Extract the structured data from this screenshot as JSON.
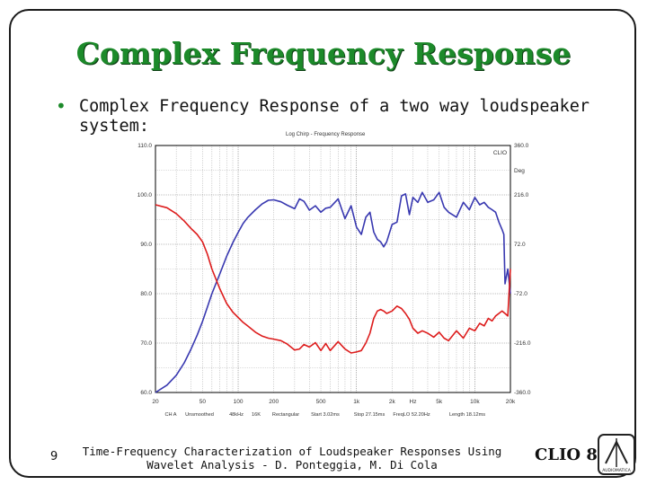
{
  "slide": {
    "title": "Complex Frequency Response",
    "bullet": "Complex Frequency Response of a two way loudspeaker system:",
    "footer": "Time-Frequency Characterization of Loudspeaker Responses Using Wavelet Analysis - D. Ponteggia, M. Di Cola",
    "page_number": "9",
    "logo_text": "CLIO 8",
    "logo_badge": "AUDIOMATICA"
  },
  "chart_data": {
    "type": "line",
    "title": "Log Chirp - Frequency Response",
    "brand": "CLIO",
    "x_scale": "log",
    "xlim": [
      20,
      20000
    ],
    "x_ticks": [
      {
        "value": 20,
        "label": "20"
      },
      {
        "value": 50,
        "label": "50"
      },
      {
        "value": 100,
        "label": "100"
      },
      {
        "value": 200,
        "label": "200"
      },
      {
        "value": 500,
        "label": "500"
      },
      {
        "value": 1000,
        "label": "1k"
      },
      {
        "value": 2000,
        "label": "2k"
      },
      {
        "value": 3000,
        "label": "Hz"
      },
      {
        "value": 5000,
        "label": "5k"
      },
      {
        "value": 10000,
        "label": "10k"
      },
      {
        "value": 20000,
        "label": "20k"
      }
    ],
    "left_axis": {
      "ylim": [
        60.0,
        110.0
      ],
      "ticks": [
        {
          "value": 110,
          "label": "110.0"
        },
        {
          "value": 100,
          "label": "100.0"
        },
        {
          "value": 90,
          "label": "90.0"
        },
        {
          "value": 80,
          "label": "80.0"
        },
        {
          "value": 70,
          "label": "70.0"
        },
        {
          "value": 60,
          "label": "60.0"
        }
      ]
    },
    "right_axis": {
      "unit": "Deg",
      "ylim": [
        -360.0,
        360.0
      ],
      "ticks": [
        {
          "value": 360,
          "label": "360.0"
        },
        {
          "value": 216,
          "label": "216.0"
        },
        {
          "value": 72,
          "label": "72.0"
        },
        {
          "value": -72,
          "label": "-72.0"
        },
        {
          "value": -216,
          "label": "-216.0"
        },
        {
          "value": -360,
          "label": "-360.0"
        }
      ]
    },
    "status_bar": [
      "CH A",
      "Unsmoothed",
      "48kHz",
      "16K",
      "Rectangular",
      "Start 3.02ms",
      "Stop 27.15ms",
      "FreqLO 52.20Hz",
      "Length 18.12ms"
    ],
    "series": [
      {
        "color": "#3838b0",
        "axis": "left",
        "x": [
          20,
          25,
          30,
          35,
          40,
          45,
          50,
          55,
          60,
          70,
          80,
          90,
          100,
          110,
          120,
          140,
          160,
          180,
          200,
          230,
          260,
          300,
          330,
          360,
          400,
          450,
          500,
          550,
          600,
          700,
          800,
          900,
          1000,
          1100,
          1200,
          1300,
          1400,
          1500,
          1600,
          1700,
          1800,
          2000,
          2200,
          2400,
          2600,
          2800,
          3000,
          3300,
          3600,
          4000,
          4500,
          5000,
          5500,
          6000,
          7000,
          8000,
          9000,
          10000,
          11000,
          12000,
          13000,
          14000,
          15000,
          16000,
          17000,
          17600,
          18000,
          19000,
          20000
        ],
        "values": [
          60.0,
          61.5,
          63.5,
          66.0,
          68.8,
          71.6,
          74.4,
          77.3,
          80.0,
          84.0,
          87.6,
          90.3,
          92.4,
          94.2,
          95.4,
          97.0,
          98.2,
          98.9,
          99.0,
          98.6,
          97.9,
          97.2,
          99.2,
          98.7,
          96.9,
          97.8,
          96.5,
          97.3,
          97.5,
          99.2,
          95.2,
          97.8,
          93.5,
          92.0,
          95.5,
          96.5,
          92.5,
          91.0,
          90.5,
          89.5,
          90.5,
          94.0,
          94.5,
          99.8,
          100.2,
          96.0,
          99.5,
          98.5,
          100.5,
          98.5,
          99.0,
          100.5,
          97.5,
          96.5,
          95.5,
          98.5,
          97.0,
          99.5,
          98.0,
          98.5,
          97.5,
          97.0,
          96.5,
          94.5,
          93.0,
          92.0,
          82.0,
          85.0,
          80.0
        ]
      },
      {
        "color": "#dd1c1c",
        "axis": "left",
        "x": [
          20,
          25,
          30,
          35,
          40,
          45,
          50,
          55,
          60,
          70,
          80,
          90,
          100,
          110,
          120,
          140,
          160,
          180,
          200,
          230,
          260,
          300,
          330,
          360,
          400,
          450,
          500,
          550,
          600,
          700,
          800,
          900,
          1000,
          1100,
          1200,
          1300,
          1400,
          1500,
          1600,
          1700,
          1800,
          2000,
          2200,
          2400,
          2600,
          2800,
          3000,
          3300,
          3600,
          4000,
          4500,
          5000,
          5500,
          6000,
          7000,
          8000,
          9000,
          10000,
          11000,
          12000,
          13000,
          14000,
          15000,
          16000,
          17000,
          18000,
          19000,
          20000
        ],
        "values": [
          98.0,
          97.4,
          96.2,
          94.7,
          93.2,
          92.0,
          90.5,
          88.0,
          85.0,
          81.0,
          78.0,
          76.3,
          75.2,
          74.2,
          73.5,
          72.2,
          71.4,
          71.0,
          70.8,
          70.5,
          69.8,
          68.6,
          68.8,
          69.7,
          69.2,
          70.1,
          68.5,
          69.9,
          68.5,
          70.3,
          68.8,
          68.0,
          68.2,
          68.5,
          70.0,
          72.0,
          75.0,
          76.5,
          76.8,
          76.5,
          76.0,
          76.5,
          77.5,
          77.0,
          76.0,
          74.8,
          73.0,
          72.0,
          72.5,
          72.0,
          71.2,
          72.2,
          71.0,
          70.5,
          72.5,
          71.0,
          73.0,
          72.5,
          74.0,
          73.5,
          75.0,
          74.5,
          75.5,
          76.0,
          76.5,
          76.0,
          75.5,
          85.0
        ]
      }
    ]
  }
}
